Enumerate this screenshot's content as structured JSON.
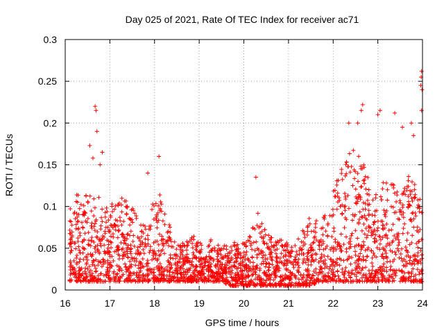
{
  "chart_data": {
    "type": "scatter",
    "title": "Day 025 of 2021, Rate Of TEC Index for receiver ac71",
    "xlabel": "GPS time / hours",
    "ylabel": "ROTI / TECUs",
    "xlim": [
      16,
      24
    ],
    "ylim": [
      0,
      0.3
    ],
    "xticks": [
      16,
      17,
      18,
      19,
      20,
      21,
      22,
      23,
      24
    ],
    "yticks": [
      0,
      0.05,
      0.1,
      0.15,
      0.2,
      0.25,
      0.3
    ],
    "xtick_labels": [
      "16",
      "17",
      "18",
      "19",
      "20",
      "21",
      "22",
      "23",
      "24"
    ],
    "ytick_labels": [
      "0",
      "0.05",
      "0.1",
      "0.15",
      "0.2",
      "0.25",
      "0.3"
    ],
    "grid": true,
    "marker": "+",
    "color": "#ff0000",
    "envelope": {
      "description": "approximate upper/lower bounds of the dense ROTI point cloud, sampled along GPS time (hours, TECUs)",
      "x": [
        16.1,
        16.3,
        16.5,
        16.7,
        16.9,
        17.1,
        17.3,
        17.5,
        17.7,
        17.9,
        18.1,
        18.3,
        18.5,
        18.7,
        18.9,
        19.1,
        19.3,
        19.5,
        19.7,
        19.9,
        20.1,
        20.3,
        20.5,
        20.7,
        20.9,
        21.1,
        21.3,
        21.5,
        21.7,
        21.9,
        22.1,
        22.3,
        22.5,
        22.7,
        22.9,
        23.1,
        23.3,
        23.5,
        23.7,
        23.9,
        24.0
      ],
      "upper": [
        0.1,
        0.12,
        0.12,
        0.12,
        0.1,
        0.11,
        0.11,
        0.1,
        0.08,
        0.1,
        0.12,
        0.09,
        0.06,
        0.06,
        0.07,
        0.05,
        0.07,
        0.05,
        0.06,
        0.06,
        0.06,
        0.1,
        0.07,
        0.06,
        0.06,
        0.05,
        0.07,
        0.09,
        0.08,
        0.1,
        0.14,
        0.16,
        0.17,
        0.15,
        0.12,
        0.13,
        0.13,
        0.12,
        0.14,
        0.12,
        0.1
      ],
      "lower": [
        0.01,
        0.01,
        0.01,
        0.01,
        0.01,
        0.01,
        0.01,
        0.01,
        0.01,
        0.01,
        0.01,
        0.01,
        0.01,
        0.01,
        0.01,
        0.01,
        0.01,
        0.01,
        0.005,
        0.005,
        0.005,
        0.005,
        0.005,
        0.005,
        0.005,
        0.005,
        0.005,
        0.005,
        0.01,
        0.01,
        0.01,
        0.01,
        0.01,
        0.01,
        0.01,
        0.01,
        0.01,
        0.01,
        0.01,
        0.01,
        0.01
      ]
    },
    "outliers": [
      {
        "x": 16.67,
        "y": 0.22
      },
      {
        "x": 16.69,
        "y": 0.215
      },
      {
        "x": 16.71,
        "y": 0.19
      },
      {
        "x": 16.55,
        "y": 0.173
      },
      {
        "x": 16.62,
        "y": 0.158
      },
      {
        "x": 16.78,
        "y": 0.15
      },
      {
        "x": 16.83,
        "y": 0.165
      },
      {
        "x": 17.85,
        "y": 0.14
      },
      {
        "x": 18.1,
        "y": 0.16
      },
      {
        "x": 20.27,
        "y": 0.135
      },
      {
        "x": 22.35,
        "y": 0.2
      },
      {
        "x": 22.55,
        "y": 0.2
      },
      {
        "x": 22.66,
        "y": 0.222
      },
      {
        "x": 22.63,
        "y": 0.215
      },
      {
        "x": 23.0,
        "y": 0.21
      },
      {
        "x": 23.05,
        "y": 0.215
      },
      {
        "x": 23.38,
        "y": 0.212
      },
      {
        "x": 23.55,
        "y": 0.195
      },
      {
        "x": 23.75,
        "y": 0.2
      },
      {
        "x": 23.8,
        "y": 0.185
      },
      {
        "x": 23.98,
        "y": 0.262
      },
      {
        "x": 23.97,
        "y": 0.255
      },
      {
        "x": 23.99,
        "y": 0.24
      },
      {
        "x": 23.96,
        "y": 0.245
      },
      {
        "x": 23.98,
        "y": 0.215
      }
    ]
  }
}
